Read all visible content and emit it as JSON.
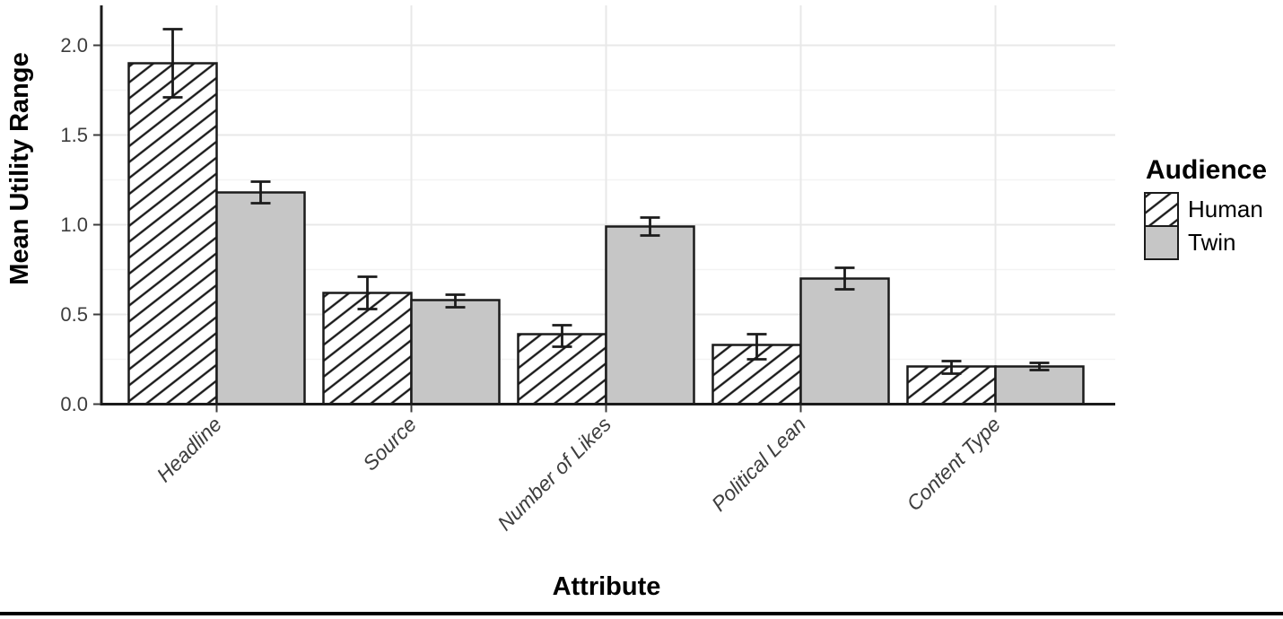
{
  "chart_data": {
    "type": "bar",
    "title": "",
    "xlabel": "Attribute",
    "ylabel": "Mean Utility Range",
    "categories": [
      "Headline",
      "Source",
      "Number of Likes",
      "Political Lean",
      "Content Type"
    ],
    "series": [
      {
        "name": "Human",
        "style": "white-with-black-diagonal-hatch",
        "values": [
          1.9,
          0.62,
          0.39,
          0.33,
          0.21
        ],
        "error_low": [
          1.71,
          0.53,
          0.32,
          0.25,
          0.17
        ],
        "error_high": [
          2.09,
          0.71,
          0.44,
          0.39,
          0.24
        ]
      },
      {
        "name": "Twin",
        "style": "solid-gray",
        "values": [
          1.18,
          0.58,
          0.99,
          0.7,
          0.21
        ],
        "error_low": [
          1.12,
          0.54,
          0.94,
          0.64,
          0.19
        ],
        "error_high": [
          1.24,
          0.61,
          1.04,
          0.76,
          0.23
        ]
      }
    ],
    "error_bars": true,
    "yticks": [
      "0.0",
      "0.5",
      "1.0",
      "1.5",
      "2.0"
    ],
    "ytick_values": [
      0.0,
      0.5,
      1.0,
      1.5,
      2.0
    ],
    "ylim": [
      0,
      2.17
    ],
    "grid": "light horizontal major+minor lines, light vertical lines at category centers",
    "legend_position": "right",
    "legend": {
      "title": "Audience",
      "entries": [
        "Human",
        "Twin"
      ]
    }
  },
  "colors": {
    "bar_gray_fill": "#c6c6c6",
    "bar_stroke": "#1b1b1b",
    "hatch_line": "#1b1b1b",
    "major_grid": "#e8e8e8",
    "minor_grid": "#f3f3f3",
    "axis_line": "#1b1b1b",
    "tick_text": "#3d3d3d",
    "title_text": "#000000",
    "bottom_rule": "#000000"
  }
}
